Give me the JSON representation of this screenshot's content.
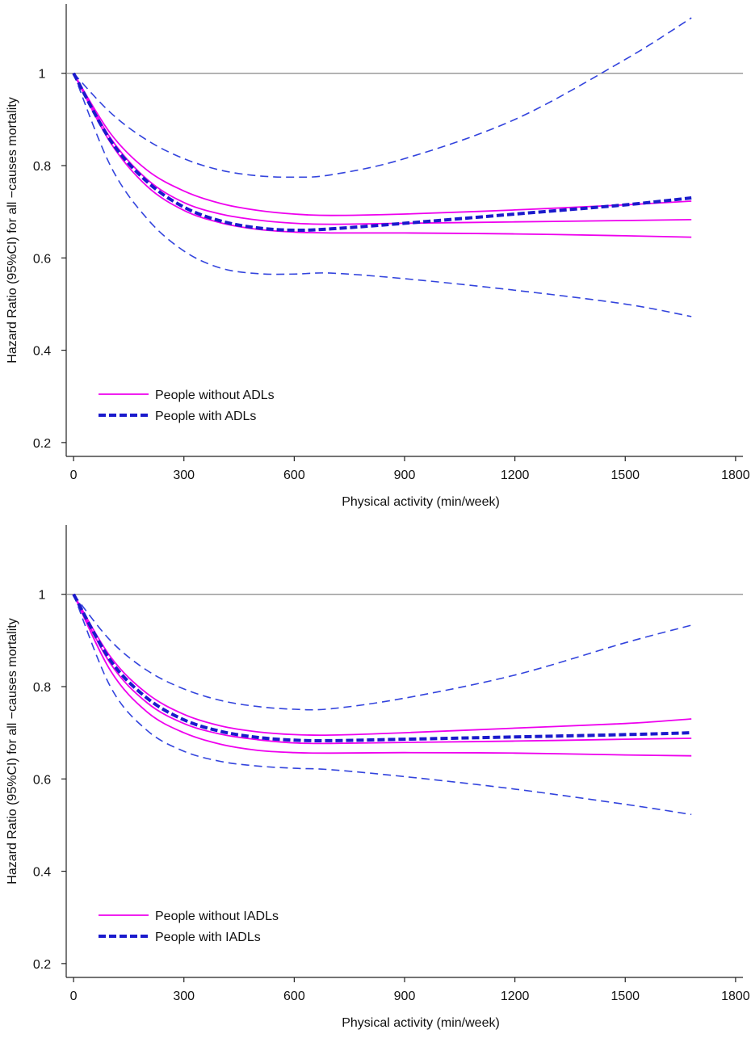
{
  "chart_data": [
    {
      "type": "line",
      "xlabel": "Physical activity (min/week)",
      "ylabel": "Hazard Ratio (95%CI) for all −causes mortality",
      "xlim": [
        -20,
        1820
      ],
      "ylim": [
        0.17,
        1.15
      ],
      "xticks": [
        0,
        300,
        600,
        900,
        1200,
        1500,
        1800
      ],
      "xtick_labels": [
        "0",
        "300",
        "600",
        "900",
        "1200",
        "1500",
        "1800"
      ],
      "yticks": [
        0.2,
        0.4,
        0.6,
        0.8,
        1
      ],
      "ytick_labels": [
        "0.2",
        "0.4",
        "0.6",
        "0.8",
        "1"
      ],
      "reference_line": 1,
      "legend": {
        "position": "bottom-left",
        "entries": [
          {
            "label": "People without ADLs",
            "series": "without_estimate"
          },
          {
            "label": "People with ADLs",
            "series": "with_estimate"
          }
        ]
      },
      "series": [
        {
          "name": "without_estimate",
          "style": "solid",
          "color": "#ee00ee",
          "x": [
            0,
            100,
            200,
            300,
            400,
            500,
            600,
            700,
            900,
            1200,
            1500,
            1680
          ],
          "values": [
            1.0,
            0.86,
            0.77,
            0.72,
            0.695,
            0.682,
            0.675,
            0.673,
            0.675,
            0.678,
            0.681,
            0.683
          ]
        },
        {
          "name": "without_upper",
          "style": "solid",
          "color": "#ee00ee",
          "x": [
            0,
            100,
            200,
            300,
            400,
            500,
            600,
            700,
            900,
            1200,
            1500,
            1680
          ],
          "values": [
            1.0,
            0.87,
            0.79,
            0.745,
            0.718,
            0.703,
            0.695,
            0.692,
            0.695,
            0.704,
            0.715,
            0.723
          ]
        },
        {
          "name": "without_lower",
          "style": "solid",
          "color": "#ee00ee",
          "x": [
            0,
            100,
            200,
            300,
            400,
            500,
            600,
            700,
            900,
            1200,
            1500,
            1680
          ],
          "values": [
            1.0,
            0.85,
            0.755,
            0.703,
            0.676,
            0.662,
            0.656,
            0.654,
            0.654,
            0.652,
            0.648,
            0.645
          ]
        },
        {
          "name": "with_estimate",
          "style": "dashed-thick",
          "color": "#1a1acc",
          "x": [
            0,
            100,
            200,
            300,
            400,
            500,
            600,
            700,
            900,
            1200,
            1500,
            1680
          ],
          "values": [
            1.0,
            0.855,
            0.765,
            0.71,
            0.68,
            0.665,
            0.66,
            0.663,
            0.675,
            0.695,
            0.715,
            0.73
          ]
        },
        {
          "name": "with_upper",
          "style": "dashed",
          "color": "#3344dd",
          "x": [
            0,
            100,
            200,
            300,
            400,
            500,
            600,
            700,
            900,
            1200,
            1500,
            1680
          ],
          "values": [
            1.0,
            0.915,
            0.855,
            0.815,
            0.79,
            0.778,
            0.775,
            0.78,
            0.815,
            0.9,
            1.03,
            1.12
          ]
        },
        {
          "name": "with_lower",
          "style": "dashed",
          "color": "#3344dd",
          "x": [
            0,
            100,
            200,
            300,
            400,
            500,
            600,
            700,
            900,
            1200,
            1500,
            1680
          ],
          "values": [
            1.0,
            0.8,
            0.685,
            0.615,
            0.578,
            0.566,
            0.565,
            0.567,
            0.555,
            0.53,
            0.5,
            0.473
          ]
        }
      ]
    },
    {
      "type": "line",
      "xlabel": "Physical activity (min/week)",
      "ylabel": "Hazard Ratio (95%CI) for all −causes mortality",
      "xlim": [
        -20,
        1820
      ],
      "ylim": [
        0.17,
        1.15
      ],
      "xticks": [
        0,
        300,
        600,
        900,
        1200,
        1500,
        1800
      ],
      "xtick_labels": [
        "0",
        "300",
        "600",
        "900",
        "1200",
        "1500",
        "1800"
      ],
      "yticks": [
        0.2,
        0.4,
        0.6,
        0.8,
        1
      ],
      "ytick_labels": [
        "0.2",
        "0.4",
        "0.6",
        "0.8",
        "1"
      ],
      "reference_line": 1,
      "legend": {
        "position": "bottom-left",
        "entries": [
          {
            "label": "People without IADLs",
            "series": "without_estimate"
          },
          {
            "label": "People with IADLs",
            "series": "with_estimate"
          }
        ]
      },
      "series": [
        {
          "name": "without_estimate",
          "style": "solid",
          "color": "#ee00ee",
          "x": [
            0,
            100,
            200,
            300,
            400,
            500,
            600,
            700,
            900,
            1200,
            1500,
            1680
          ],
          "values": [
            1.0,
            0.85,
            0.765,
            0.72,
            0.697,
            0.685,
            0.678,
            0.677,
            0.679,
            0.682,
            0.686,
            0.688
          ]
        },
        {
          "name": "without_upper",
          "style": "solid",
          "color": "#ee00ee",
          "x": [
            0,
            100,
            200,
            300,
            400,
            500,
            600,
            700,
            900,
            1200,
            1500,
            1680
          ],
          "values": [
            1.0,
            0.865,
            0.785,
            0.74,
            0.715,
            0.702,
            0.696,
            0.695,
            0.7,
            0.71,
            0.72,
            0.73
          ]
        },
        {
          "name": "without_lower",
          "style": "solid",
          "color": "#ee00ee",
          "x": [
            0,
            100,
            200,
            300,
            400,
            500,
            600,
            700,
            900,
            1200,
            1500,
            1680
          ],
          "values": [
            1.0,
            0.835,
            0.745,
            0.7,
            0.675,
            0.662,
            0.657,
            0.656,
            0.657,
            0.656,
            0.652,
            0.65
          ]
        },
        {
          "name": "with_estimate",
          "style": "dashed-thick",
          "color": "#1a1acc",
          "x": [
            0,
            100,
            200,
            300,
            400,
            500,
            600,
            700,
            900,
            1200,
            1500,
            1680
          ],
          "values": [
            1.0,
            0.857,
            0.775,
            0.728,
            0.703,
            0.69,
            0.684,
            0.683,
            0.686,
            0.691,
            0.696,
            0.7
          ]
        },
        {
          "name": "with_upper",
          "style": "dashed",
          "color": "#3344dd",
          "x": [
            0,
            100,
            200,
            300,
            400,
            500,
            600,
            700,
            900,
            1200,
            1500,
            1680
          ],
          "values": [
            1.0,
            0.9,
            0.835,
            0.795,
            0.77,
            0.757,
            0.751,
            0.752,
            0.775,
            0.825,
            0.895,
            0.933
          ]
        },
        {
          "name": "with_lower",
          "style": "dashed",
          "color": "#3344dd",
          "x": [
            0,
            100,
            200,
            300,
            400,
            500,
            600,
            700,
            900,
            1200,
            1500,
            1680
          ],
          "values": [
            1.0,
            0.8,
            0.705,
            0.66,
            0.638,
            0.628,
            0.623,
            0.62,
            0.605,
            0.578,
            0.545,
            0.523
          ]
        }
      ]
    }
  ]
}
